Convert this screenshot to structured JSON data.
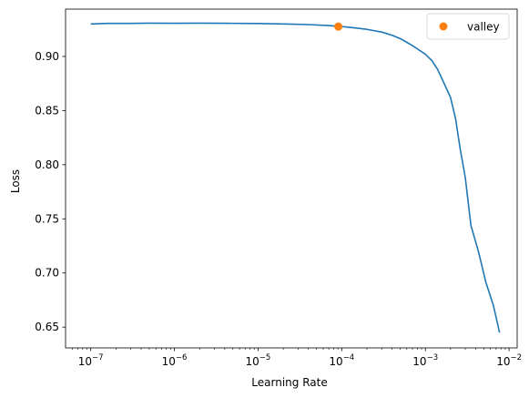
{
  "chart_data": {
    "type": "line",
    "xlabel": "Learning Rate",
    "ylabel": "Loss",
    "xscale": "log",
    "xlim": [
      5e-08,
      0.0125
    ],
    "ylim": [
      0.6308,
      0.9437
    ],
    "x_ticks": [
      {
        "value": 1e-07,
        "base": "10",
        "exp": "−7"
      },
      {
        "value": 1e-06,
        "base": "10",
        "exp": "−6"
      },
      {
        "value": 1e-05,
        "base": "10",
        "exp": "−5"
      },
      {
        "value": 0.0001,
        "base": "10",
        "exp": "−4"
      },
      {
        "value": 0.001,
        "base": "10",
        "exp": "−3"
      },
      {
        "value": 0.01,
        "base": "10",
        "exp": "−2"
      }
    ],
    "y_ticks": [
      {
        "value": 0.65,
        "label": "0.65"
      },
      {
        "value": 0.7,
        "label": "0.70"
      },
      {
        "value": 0.75,
        "label": "0.75"
      },
      {
        "value": 0.8,
        "label": "0.80"
      },
      {
        "value": 0.85,
        "label": "0.85"
      },
      {
        "value": 0.9,
        "label": "0.90"
      }
    ],
    "grid": false,
    "legend_position": "top-right",
    "series": [
      {
        "color": "#1f77b4",
        "points": [
          [
            1e-07,
            0.93
          ],
          [
            1.6e-07,
            0.9305
          ],
          [
            3e-07,
            0.9305
          ],
          [
            5e-07,
            0.9307
          ],
          [
            1e-06,
            0.9306
          ],
          [
            2e-06,
            0.9307
          ],
          [
            4e-06,
            0.9306
          ],
          [
            1e-05,
            0.9304
          ],
          [
            2e-05,
            0.93
          ],
          [
            4e-05,
            0.9294
          ],
          [
            7e-05,
            0.9285
          ],
          [
            0.0001,
            0.9276
          ],
          [
            0.00015,
            0.9262
          ],
          [
            0.0002,
            0.925
          ],
          [
            0.0003,
            0.9225
          ],
          [
            0.0004,
            0.9195
          ],
          [
            0.0005,
            0.9165
          ],
          [
            0.0006,
            0.913
          ],
          [
            0.0007,
            0.91
          ],
          [
            0.0008,
            0.907
          ],
          [
            0.001,
            0.902
          ],
          [
            0.0012,
            0.896
          ],
          [
            0.0014,
            0.888
          ],
          [
            0.0017,
            0.874
          ],
          [
            0.002,
            0.862
          ],
          [
            0.0023,
            0.842
          ],
          [
            0.0026,
            0.815
          ],
          [
            0.003,
            0.788
          ],
          [
            0.0035,
            0.744
          ],
          [
            0.0043,
            0.72
          ],
          [
            0.0053,
            0.691
          ],
          [
            0.0065,
            0.67
          ],
          [
            0.0077,
            0.645
          ]
        ]
      },
      {
        "name": "valley",
        "color": "#ff7f0e",
        "marker": "circle",
        "points": [
          [
            9.1e-05,
            0.9276
          ]
        ]
      }
    ]
  }
}
